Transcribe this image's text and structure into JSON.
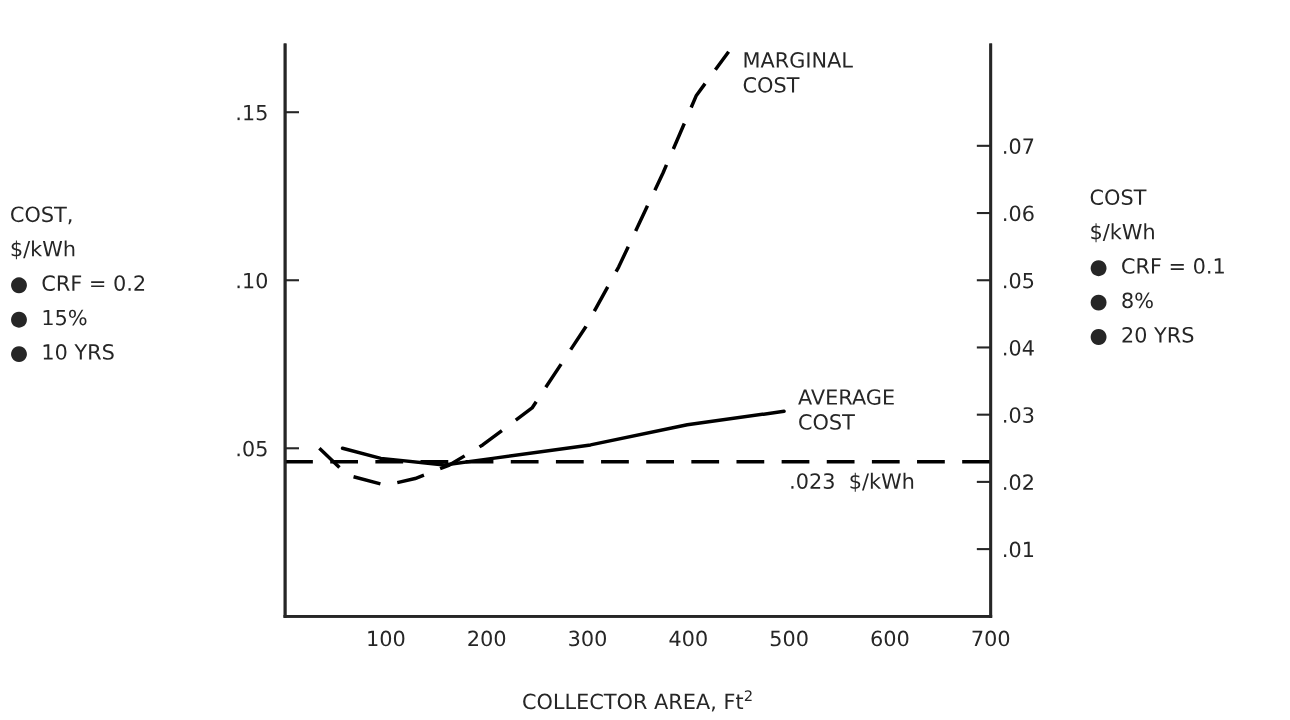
{
  "chart_data": {
    "type": "line",
    "xlabel": "COLLECTOR AREA, Ft$^{2}$",
    "ylabel": "COST,\n$/kWh\n●  CRF = 0.2\n●  15%\n●  10 YRS",
    "y2label": "COST\n$/kWh\n●  CRF = 0.1\n●  8%\n●  20 YRS",
    "xlim": [
      0,
      700
    ],
    "xticks": [
      100,
      200,
      300,
      400,
      500,
      600,
      700
    ],
    "ylim": [
      0,
      0.17
    ],
    "yticks": [
      {
        "value": 0.05,
        "label": ".05"
      },
      {
        "value": 0.1,
        "label": ".10"
      },
      {
        "value": 0.15,
        "label": ".15"
      }
    ],
    "y2lim": [
      0,
      0.085
    ],
    "y2ticks": [
      {
        "value": 0.01,
        "label": ".01"
      },
      {
        "value": 0.02,
        "label": ".02"
      },
      {
        "value": 0.03,
        "label": ".03"
      },
      {
        "value": 0.04,
        "label": ".04"
      },
      {
        "value": 0.05,
        "label": ".05"
      },
      {
        "value": 0.06,
        "label": ".06"
      },
      {
        "value": 0.07,
        "label": ".07"
      }
    ],
    "series": [
      {
        "name": "MARGINAL\nCOST",
        "color": "#000000",
        "line_style": "dashed",
        "x": [
          34,
          62,
          100,
          129,
          163,
          196,
          245,
          298,
          331,
          375,
          408,
          440
        ],
        "values": [
          0.05,
          0.042,
          0.039,
          0.041,
          0.045,
          0.051,
          0.062,
          0.086,
          0.104,
          0.132,
          0.155,
          0.168
        ]
      },
      {
        "name": "AVERAGE\nCOST",
        "color": "#000000",
        "line_style": "solid",
        "x": [
          57,
          95,
          158,
          206,
          303,
          399,
          495
        ],
        "values": [
          0.05,
          0.047,
          0.045,
          0.047,
          0.051,
          0.057,
          0.061
        ]
      }
    ],
    "ref_lines": [
      {
        "axis": "y2",
        "value": 0.023,
        "label": ".023  $/kWh",
        "color": "#000000",
        "line_style": "dashed"
      }
    ],
    "marker": "none",
    "grid": false,
    "legend": false
  }
}
